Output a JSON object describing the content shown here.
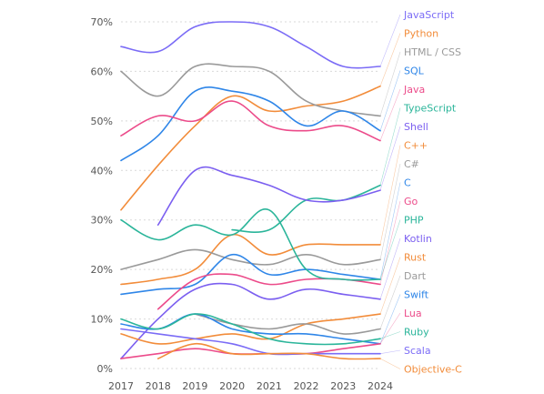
{
  "chart_data": {
    "type": "line",
    "title": "",
    "xlabel": "",
    "ylabel": "",
    "x": [
      "2017",
      "2018",
      "2019",
      "2020",
      "2021",
      "2022",
      "2023",
      "2024"
    ],
    "xlim": [
      2017,
      2024
    ],
    "ylim": [
      0,
      72
    ],
    "yticks": [
      0,
      10,
      20,
      30,
      40,
      50,
      60,
      70
    ],
    "ytick_labels": [
      "0%",
      "10%",
      "20%",
      "30%",
      "40%",
      "50%",
      "60%",
      "70%"
    ],
    "grid": "horizontal",
    "legend_position": "right",
    "series": [
      {
        "name": "JavaScript",
        "color": "#7b6cf6",
        "values": [
          65,
          64,
          69,
          70,
          69,
          65,
          61,
          61
        ]
      },
      {
        "name": "Python",
        "color": "#f28c3a",
        "values": [
          32,
          41,
          49,
          55,
          52,
          53,
          54,
          57
        ]
      },
      {
        "name": "HTML / CSS",
        "color": "#9a9a9a",
        "values": [
          60,
          55,
          61,
          61,
          60,
          54,
          52,
          51
        ]
      },
      {
        "name": "SQL",
        "color": "#2f86e8",
        "values": [
          42,
          47,
          56,
          56,
          54,
          49,
          52,
          48
        ]
      },
      {
        "name": "Java",
        "color": "#ec4b8a",
        "values": [
          47,
          51,
          50,
          54,
          49,
          48,
          49,
          46
        ]
      },
      {
        "name": "TypeScript",
        "color": "#2bb59a",
        "values": [
          null,
          null,
          null,
          28,
          28,
          34,
          34,
          37
        ]
      },
      {
        "name": "Shell",
        "color": "#7b5ff0",
        "values": [
          null,
          29,
          40,
          39,
          37,
          34,
          34,
          36
        ]
      },
      {
        "name": "C++",
        "color": "#f28c3a",
        "values": [
          17,
          18,
          20,
          27,
          23,
          25,
          25,
          25
        ]
      },
      {
        "name": "C#",
        "color": "#9a9a9a",
        "values": [
          20,
          22,
          24,
          22,
          21,
          23,
          21,
          22
        ]
      },
      {
        "name": "C",
        "color": "#2f86e8",
        "values": [
          15,
          16,
          17,
          23,
          19,
          20,
          19,
          18
        ]
      },
      {
        "name": "Go",
        "color": "#ec4b8a",
        "values": [
          null,
          12,
          18,
          19,
          17,
          18,
          18,
          17
        ]
      },
      {
        "name": "PHP",
        "color": "#2bb59a",
        "values": [
          30,
          26,
          29,
          27,
          32,
          20,
          18,
          18
        ]
      },
      {
        "name": "Kotlin",
        "color": "#7b5ff0",
        "values": [
          2,
          10,
          16,
          17,
          14,
          16,
          15,
          14
        ]
      },
      {
        "name": "Rust",
        "color": "#f28c3a",
        "values": [
          7,
          5,
          6,
          7,
          6,
          9,
          10,
          11
        ]
      },
      {
        "name": "Dart",
        "color": "#9a9a9a",
        "values": [
          null,
          null,
          11,
          9,
          8,
          9,
          7,
          8
        ]
      },
      {
        "name": "Swift",
        "color": "#2f86e8",
        "values": [
          9,
          8,
          11,
          8,
          7,
          7,
          6,
          5
        ]
      },
      {
        "name": "Lua",
        "color": "#ec4b8a",
        "values": [
          2,
          3,
          4,
          3,
          3,
          3,
          4,
          5
        ]
      },
      {
        "name": "Ruby",
        "color": "#2bb59a",
        "values": [
          10,
          8,
          11,
          9,
          6,
          5,
          5,
          6
        ]
      },
      {
        "name": "Scala",
        "color": "#7b6cf6",
        "values": [
          8,
          7,
          6,
          5,
          3,
          3,
          3,
          3
        ]
      },
      {
        "name": "Objective-C",
        "color": "#f28c3a",
        "values": [
          null,
          2,
          5,
          3,
          3,
          3,
          2,
          2
        ]
      }
    ]
  }
}
